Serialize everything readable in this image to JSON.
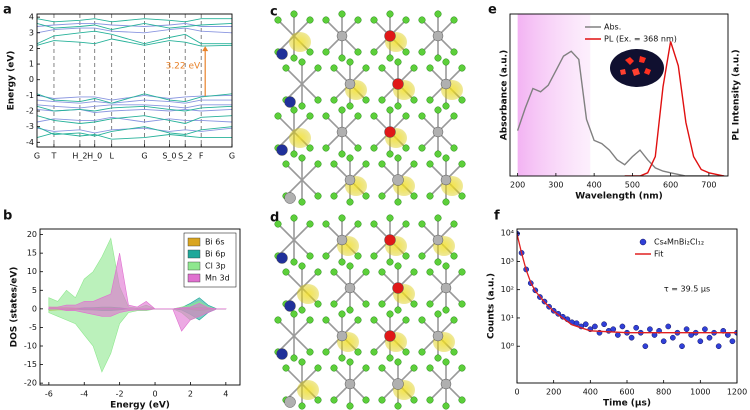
{
  "chart_data": [
    {
      "type": "line",
      "panel_label": "a",
      "ylabel": "Energy (eV)",
      "annotation": "3.22 eV",
      "xlim": [
        0,
        1
      ],
      "ylim": [
        -4.3,
        4.2
      ],
      "yticks": [
        -4,
        -3,
        -2,
        -1,
        0,
        1,
        2,
        3,
        4
      ],
      "vlines": true,
      "xticks": [
        {
          "value": 0,
          "label": "G"
        },
        {
          "value": 0.087,
          "label": "T"
        },
        {
          "value": 0.22,
          "label": "H_2"
        },
        {
          "value": 0.296,
          "label": "H_0"
        },
        {
          "value": 0.383,
          "label": "L"
        },
        {
          "value": 0.551,
          "label": "G"
        },
        {
          "value": 0.679,
          "label": "S_0"
        },
        {
          "value": 0.76,
          "label": "S_2"
        },
        {
          "value": 0.842,
          "label": "F"
        },
        {
          "value": 1,
          "label": "G"
        }
      ],
      "x": [
        0,
        0.087,
        0.22,
        0.296,
        0.383,
        0.551,
        0.679,
        0.76,
        0.842,
        1
      ],
      "series": [
        {
          "color": "#8a96e0",
          "values": [
            3.0,
            3.2,
            3.3,
            3.3,
            3.1,
            3.0,
            3.2,
            3.3,
            3.1,
            3.0
          ]
        },
        {
          "color": "#8a96e0",
          "values": [
            3.4,
            3.5,
            3.6,
            3.6,
            3.5,
            3.4,
            3.5,
            3.6,
            3.4,
            3.4
          ]
        },
        {
          "color": "#8a96e0",
          "values": [
            -1.0,
            -1.2,
            -1.1,
            -1.1,
            -1.3,
            -1.0,
            -1.2,
            -1.1,
            -1.05,
            -1.0
          ]
        },
        {
          "color": "#8a96e0",
          "values": [
            -1.3,
            -1.4,
            -1.5,
            -1.4,
            -1.5,
            -1.3,
            -1.4,
            -1.5,
            -1.3,
            -1.3
          ]
        },
        {
          "color": "#8a96e0",
          "values": [
            -1.6,
            -1.7,
            -1.8,
            -1.7,
            -1.6,
            -1.6,
            -1.7,
            -1.8,
            -1.6,
            -1.6
          ]
        },
        {
          "color": "#8a96e0",
          "values": [
            -1.9,
            -2.0,
            -1.9,
            -2.1,
            -2.0,
            -1.9,
            -2.0,
            -1.9,
            -2.0,
            -1.9
          ]
        },
        {
          "color": "#8a96e0",
          "values": [
            -2.7,
            -2.5,
            -2.6,
            -2.6,
            -2.4,
            -2.7,
            -2.5,
            -2.6,
            -2.6,
            -2.7
          ]
        },
        {
          "color": "#8a96e0",
          "values": [
            -3.1,
            -3.3,
            -3.2,
            -3.4,
            -3.2,
            -3.1,
            -3.3,
            -3.2,
            -3.3,
            -3.1
          ]
        },
        {
          "color": "#27b29a",
          "values": [
            2.2,
            2.5,
            2.4,
            2.3,
            2.6,
            2.2,
            2.5,
            2.4,
            2.15,
            2.2
          ]
        },
        {
          "color": "#27b29a",
          "values": [
            2.3,
            2.8,
            3.0,
            3.1,
            2.9,
            2.3,
            2.7,
            2.9,
            2.3,
            2.3
          ]
        },
        {
          "color": "#27b29a",
          "values": [
            3.6,
            3.3,
            3.4,
            3.5,
            3.2,
            3.6,
            3.3,
            3.4,
            3.5,
            3.6
          ]
        },
        {
          "color": "#27b29a",
          "values": [
            3.9,
            3.7,
            3.8,
            3.9,
            3.7,
            3.9,
            3.8,
            3.7,
            3.9,
            3.9
          ]
        },
        {
          "color": "#27b29a",
          "values": [
            -0.9,
            -1.3,
            -1.4,
            -1.2,
            -1.5,
            -0.9,
            -1.3,
            -1.4,
            -1.1,
            -0.9
          ]
        },
        {
          "color": "#27b29a",
          "values": [
            -1.7,
            -2.0,
            -1.9,
            -2.0,
            -1.8,
            -1.7,
            -1.9,
            -2.0,
            -1.8,
            -1.7
          ]
        },
        {
          "color": "#27b29a",
          "values": [
            -2.3,
            -2.6,
            -2.8,
            -2.7,
            -2.5,
            -2.3,
            -2.6,
            -2.8,
            -2.4,
            -2.3
          ]
        },
        {
          "color": "#27b29a",
          "values": [
            -3.0,
            -3.5,
            -3.4,
            -3.6,
            -3.3,
            -3.0,
            -3.4,
            -3.5,
            -3.2,
            -3.0
          ]
        },
        {
          "color": "#27b29a",
          "values": [
            -3.7,
            -3.4,
            -3.6,
            -3.5,
            -3.8,
            -3.7,
            -3.5,
            -3.6,
            -3.7,
            -3.7
          ]
        }
      ]
    },
    {
      "type": "area",
      "panel_label": "b",
      "xlabel": "Energy (eV)",
      "ylabel": "DOS (states/eV)",
      "legend": "upper right",
      "xlim": [
        -6.5,
        4.8
      ],
      "ylim": [
        -20.5,
        21.5
      ],
      "xticks": [
        -6,
        -4,
        -2,
        0,
        2,
        4
      ],
      "yticks": [
        -20,
        -15,
        -10,
        -5,
        0,
        5,
        10,
        15,
        20
      ],
      "x": [
        -6,
        -5.5,
        -5,
        -4.5,
        -4,
        -3.5,
        -3,
        -2.5,
        -2,
        -1.5,
        -1,
        -0.5,
        0,
        0.5,
        1,
        1.5,
        2,
        2.5,
        3,
        3.5,
        4
      ],
      "series": [
        {
          "name": "Bi 6s",
          "color": "#d9a520",
          "values": [
            0.5,
            0.3,
            0.3,
            0.2,
            0.2,
            0.3,
            0.3,
            0.3,
            0.2,
            0,
            0,
            0,
            0,
            0,
            0,
            0,
            0.2,
            0.5,
            0.2,
            0,
            0
          ],
          "values_down": [
            -0.5,
            -0.3,
            -0.3,
            -0.2,
            -0.2,
            -0.3,
            -0.3,
            -0.3,
            -0.2,
            0,
            0,
            0,
            0,
            0,
            0,
            0,
            -0.2,
            -0.5,
            -0.2,
            0,
            0
          ]
        },
        {
          "name": "Bi 6p",
          "color": "#1fa89a",
          "values": [
            0,
            0,
            0,
            0,
            0.3,
            0.3,
            0.5,
            0.5,
            0.3,
            0,
            0,
            0,
            0,
            0,
            0,
            0.3,
            1.5,
            3,
            1,
            0,
            0
          ],
          "values_down": [
            0,
            0,
            0,
            0,
            -0.3,
            -0.3,
            -0.5,
            -0.5,
            -0.3,
            0,
            0,
            0,
            0,
            0,
            0,
            -0.3,
            -1.5,
            -3,
            -1,
            0,
            0
          ]
        },
        {
          "name": "Cl 3p",
          "color": "#8ee88e",
          "values": [
            3,
            2,
            5,
            3,
            8,
            10,
            14,
            19,
            6,
            0.5,
            0.2,
            1,
            0,
            0,
            0,
            0.5,
            1,
            2,
            0.5,
            0,
            0
          ],
          "values_down": [
            -1,
            -2,
            -3,
            -4,
            -7,
            -10,
            -17,
            -12,
            -4,
            -1,
            -0.5,
            -0.5,
            0,
            0,
            0,
            -1,
            -3,
            -2,
            -0.5,
            0,
            0
          ]
        },
        {
          "name": "Mn 3d",
          "color": "#e070d0",
          "values": [
            0.5,
            0.5,
            1,
            1,
            2,
            2,
            3,
            4,
            15,
            1,
            0.5,
            2,
            0,
            0,
            0,
            0.3,
            0.5,
            1.5,
            0.3,
            0,
            0
          ],
          "values_down": [
            0,
            0,
            -0.5,
            -0.5,
            -1,
            -1.5,
            -2,
            -2,
            -1,
            -0.5,
            -0.3,
            -0.3,
            0,
            0,
            0,
            -6,
            -3,
            -2,
            -1,
            0,
            0
          ]
        }
      ]
    },
    {
      "type": "line",
      "panel_label": "e",
      "xlabel": "Wavelength (nm)",
      "ylabel": "Absorbance (a.u.)",
      "y2label": "PL Intensity (a.u.)",
      "legend": "upper center",
      "xlim": [
        180,
        750
      ],
      "ylim": [
        0,
        1
      ],
      "y2lim": [
        0,
        1
      ],
      "xticks": [
        200,
        300,
        400,
        500,
        600,
        700
      ],
      "shade_range": [
        200,
        390
      ],
      "series": [
        {
          "name": "Abs.",
          "color": "#808080",
          "x": [
            200,
            220,
            240,
            260,
            280,
            300,
            320,
            340,
            360,
            380,
            400,
            420,
            440,
            460,
            480,
            500,
            520,
            540,
            560,
            580,
            600,
            620,
            640,
            660,
            680,
            700,
            720,
            740
          ],
          "values": [
            0.28,
            0.42,
            0.54,
            0.52,
            0.56,
            0.65,
            0.74,
            0.77,
            0.72,
            0.35,
            0.22,
            0.2,
            0.16,
            0.1,
            0.07,
            0.12,
            0.16,
            0.1,
            0.05,
            0.03,
            0.02,
            0.01,
            0,
            0,
            0,
            0,
            0,
            0
          ]
        },
        {
          "name": "PL (Ex. = 368 nm)",
          "color": "#e01010",
          "axis": "y2",
          "x": [
            480,
            500,
            520,
            540,
            560,
            580,
            600,
            620,
            640,
            660,
            680,
            700,
            720,
            740
          ],
          "values": [
            0,
            0,
            0,
            0.02,
            0.12,
            0.55,
            0.83,
            0.68,
            0.33,
            0.12,
            0.04,
            0.02,
            0.01,
            0
          ]
        }
      ]
    },
    {
      "type": "scatter",
      "panel_label": "f",
      "xlabel": "Time (μs)",
      "ylabel": "Counts (a.u.)",
      "annotation": "τ = 39.5 μs",
      "legend": "upper right",
      "yscale": "log",
      "xlim": [
        0,
        1200
      ],
      "ylim": [
        0.05,
        14000
      ],
      "xticks": [
        0,
        200,
        400,
        600,
        800,
        1000,
        1200
      ],
      "yticks": [
        {
          "value": 1,
          "label": "10⁰"
        },
        {
          "value": 10,
          "label": "10¹"
        },
        {
          "value": 100,
          "label": "10²"
        },
        {
          "value": 1000,
          "label": "10³"
        },
        {
          "value": 10000,
          "label": "10⁴"
        }
      ],
      "series": [
        {
          "name": "Cs₄MnBi₂Cl₁₂",
          "color": "#3040d8",
          "mode": "markers",
          "x": [
            0,
            25,
            50,
            75,
            100,
            125,
            150,
            175,
            200,
            225,
            250,
            275,
            300,
            325,
            350,
            375,
            400,
            425,
            450,
            475,
            500,
            525,
            550,
            575,
            600,
            625,
            650,
            675,
            700,
            725,
            750,
            775,
            800,
            825,
            850,
            875,
            900,
            925,
            950,
            975,
            1000,
            1025,
            1050,
            1075,
            1100,
            1125,
            1150,
            1175,
            1200
          ],
          "values": [
            9500,
            2000,
            520,
            170,
            95,
            55,
            38,
            25,
            18,
            14,
            11,
            9,
            7,
            6.5,
            5,
            6,
            4,
            5,
            3,
            6,
            3.5,
            4,
            2.5,
            5,
            3,
            2,
            4.5,
            3,
            1,
            4,
            2.5,
            3.5,
            1.5,
            5,
            2,
            3,
            1,
            4,
            2.5,
            3,
            1.5,
            4,
            2,
            3,
            1,
            3.5,
            2.5,
            1.5,
            3
          ]
        },
        {
          "name": "Fit",
          "color": "#e02020",
          "mode": "lines",
          "x": [
            0,
            25,
            50,
            75,
            100,
            150,
            200,
            300,
            400,
            600,
            800,
            1000,
            1200
          ],
          "values": [
            9403,
            1967,
            498,
            178,
            90,
            36,
            17,
            5.7,
            3.5,
            3,
            3,
            3,
            3
          ]
        }
      ]
    }
  ],
  "structure_panels": [
    {
      "label": "c"
    },
    {
      "label": "d"
    }
  ]
}
